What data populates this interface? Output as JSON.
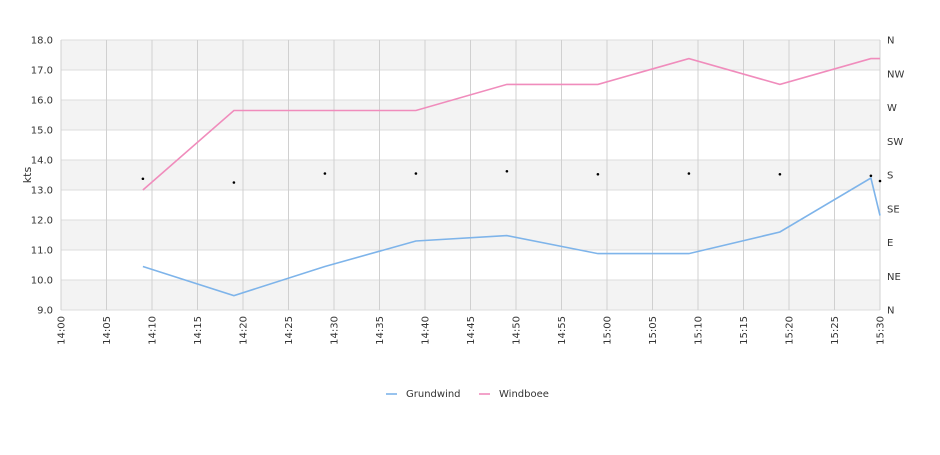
{
  "chart_data": {
    "type": "line",
    "title": "",
    "xlabel": "",
    "ylabel": "kts",
    "ylim": [
      9.0,
      18.0
    ],
    "y_ticks": [
      "9.0",
      "10.0",
      "11.0",
      "12.0",
      "13.0",
      "14.0",
      "15.0",
      "16.0",
      "17.0",
      "18.0"
    ],
    "x_ticks": [
      "14:00",
      "14:05",
      "14:10",
      "14:15",
      "14:20",
      "14:25",
      "14:30",
      "14:35",
      "14:40",
      "14:45",
      "14:50",
      "14:55",
      "15:00",
      "15:05",
      "15:10",
      "15:15",
      "15:20",
      "15:25",
      "15:30"
    ],
    "direction_ticks": [
      "N",
      "NE",
      "E",
      "SE",
      "S",
      "SW",
      "W",
      "NW",
      "N"
    ],
    "grid": true,
    "legend_position": "bottom-center",
    "series": [
      {
        "name": "Grundwind",
        "color": "#7eb4ea",
        "x": [
          "14:09",
          "14:19",
          "14:29",
          "14:39",
          "14:49",
          "14:59",
          "15:09",
          "15:19",
          "15:29",
          "15:30"
        ],
        "values": [
          10.45,
          9.48,
          10.45,
          11.3,
          11.48,
          10.88,
          10.88,
          11.6,
          13.4,
          12.15
        ]
      },
      {
        "name": "Windboee",
        "color": "#f08cbc",
        "x": [
          "14:09",
          "14:19",
          "14:29",
          "14:39",
          "14:49",
          "14:59",
          "15:09",
          "15:19",
          "15:29",
          "15:30"
        ],
        "values": [
          13.0,
          15.65,
          15.65,
          15.65,
          16.52,
          16.52,
          17.38,
          16.52,
          17.38,
          17.38
        ]
      }
    ],
    "direction_series": {
      "name": "direction",
      "color": "#000000",
      "x": [
        "14:09",
        "14:19",
        "14:29",
        "14:39",
        "14:49",
        "14:59",
        "15:09",
        "15:19",
        "15:29",
        "15:30"
      ],
      "values_deg": [
        175,
        170,
        182,
        182,
        185,
        181,
        182,
        181,
        179,
        172
      ]
    }
  }
}
